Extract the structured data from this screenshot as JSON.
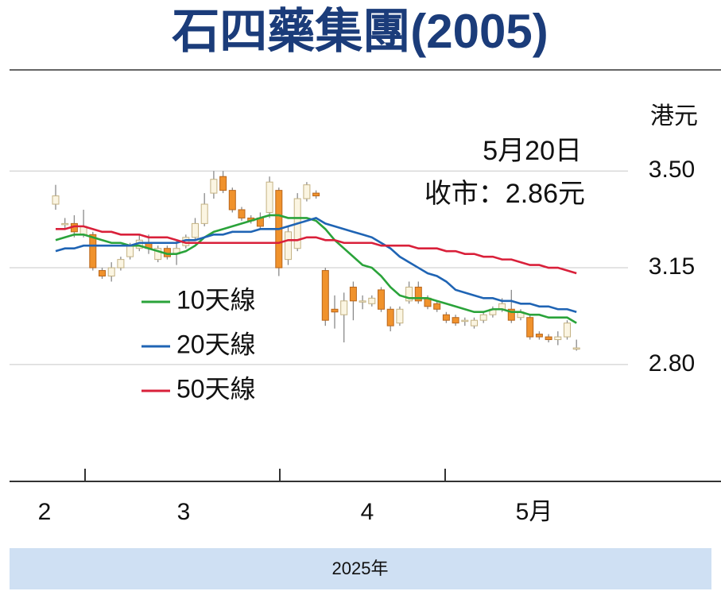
{
  "chart_data": {
    "type": "candlestick",
    "title": "石四藥集團(2005)",
    "y_unit": "港元",
    "annotations": [
      "5月20日",
      "收市：2.86元"
    ],
    "month_labels": [
      "2",
      "3",
      "4",
      "5月"
    ],
    "x_label": "2025年",
    "ylim": [
      2.38,
      3.86
    ],
    "yticks": [
      {
        "value": 3.5,
        "label": "3.50"
      },
      3.15,
      {
        "value": 2.8,
        "label": "2.80"
      }
    ],
    "grid": true,
    "up_color": "#fbf5e2",
    "down_color": "#f0922c",
    "open": [
      3.38,
      3.31,
      3.31,
      3.27,
      3.27,
      3.14,
      3.12,
      3.15,
      3.19,
      3.22,
      3.24,
      3.18,
      3.22,
      3.2,
      3.23,
      3.26,
      3.31,
      3.42,
      3.48,
      3.43,
      3.36,
      3.33,
      3.33,
      3.35,
      3.43,
      3.18,
      3.22,
      3.4,
      3.42,
      3.14,
      3.0,
      2.98,
      3.08,
      3.03,
      3.02,
      3.07,
      3.0,
      2.95,
      3.03,
      3.08,
      3.04,
      3.02,
      2.98,
      2.97,
      2.96,
      2.94,
      2.96,
      2.98,
      3.0,
      3.0,
      2.97,
      2.97,
      2.91,
      2.9,
      2.89,
      2.9,
      2.86
    ],
    "high": [
      3.45,
      3.33,
      3.34,
      3.36,
      3.28,
      3.15,
      3.17,
      3.19,
      3.24,
      3.27,
      3.27,
      3.23,
      3.23,
      3.25,
      3.27,
      3.33,
      3.42,
      3.5,
      3.5,
      3.44,
      3.37,
      3.34,
      3.35,
      3.48,
      3.44,
      3.3,
      3.42,
      3.46,
      3.43,
      3.15,
      3.05,
      3.06,
      3.1,
      3.05,
      3.05,
      3.08,
      3.01,
      3.01,
      3.1,
      3.1,
      3.05,
      3.03,
      2.99,
      2.98,
      2.97,
      2.97,
      2.99,
      3.01,
      3.04,
      3.07,
      3.0,
      2.98,
      2.92,
      2.91,
      2.92,
      2.96,
      2.89
    ],
    "low": [
      3.36,
      3.29,
      3.26,
      3.26,
      3.14,
      3.11,
      3.1,
      3.14,
      3.18,
      3.21,
      3.2,
      3.17,
      3.18,
      3.16,
      3.22,
      3.25,
      3.3,
      3.4,
      3.42,
      3.35,
      3.32,
      3.31,
      3.29,
      3.33,
      3.12,
      3.16,
      3.21,
      3.39,
      3.4,
      2.94,
      2.93,
      2.88,
      2.96,
      3.0,
      3.01,
      2.99,
      2.92,
      2.94,
      3.02,
      3.02,
      3.0,
      2.99,
      2.95,
      2.94,
      2.94,
      2.93,
      2.95,
      2.97,
      2.99,
      2.95,
      2.96,
      2.89,
      2.89,
      2.88,
      2.87,
      2.89,
      2.85
    ],
    "close": [
      3.41,
      3.31,
      3.28,
      3.3,
      3.15,
      3.12,
      3.15,
      3.18,
      3.23,
      3.25,
      3.22,
      3.22,
      3.19,
      3.22,
      3.26,
      3.31,
      3.38,
      3.47,
      3.43,
      3.36,
      3.33,
      3.32,
      3.3,
      3.46,
      3.15,
      3.28,
      3.4,
      3.45,
      3.41,
      2.96,
      2.99,
      3.03,
      3.03,
      3.03,
      3.04,
      3.0,
      2.94,
      3.0,
      3.08,
      3.03,
      3.01,
      3.0,
      2.96,
      2.95,
      2.96,
      2.96,
      2.98,
      3.0,
      3.02,
      2.96,
      2.99,
      2.9,
      2.9,
      2.89,
      2.9,
      2.95,
      2.86
    ],
    "series": [
      {
        "name": "10天線",
        "color": "#2aa33a",
        "values": [
          3.25,
          3.26,
          3.27,
          3.27,
          3.26,
          3.25,
          3.24,
          3.24,
          3.23,
          3.23,
          3.22,
          3.21,
          3.2,
          3.2,
          3.21,
          3.23,
          3.26,
          3.28,
          3.29,
          3.3,
          3.31,
          3.32,
          3.33,
          3.34,
          3.34,
          3.33,
          3.33,
          3.33,
          3.32,
          3.29,
          3.25,
          3.22,
          3.19,
          3.16,
          3.15,
          3.12,
          3.08,
          3.05,
          3.04,
          3.04,
          3.04,
          3.03,
          3.02,
          3.01,
          3.0,
          2.99,
          2.99,
          3.0,
          3.0,
          2.99,
          2.99,
          2.98,
          2.98,
          2.97,
          2.97,
          2.97,
          2.95
        ]
      },
      {
        "name": "20天線",
        "color": "#1f64b4",
        "values": [
          3.21,
          3.22,
          3.22,
          3.23,
          3.23,
          3.23,
          3.23,
          3.23,
          3.23,
          3.24,
          3.24,
          3.24,
          3.24,
          3.24,
          3.25,
          3.25,
          3.26,
          3.27,
          3.27,
          3.28,
          3.28,
          3.28,
          3.29,
          3.29,
          3.29,
          3.3,
          3.31,
          3.32,
          3.33,
          3.31,
          3.3,
          3.29,
          3.28,
          3.27,
          3.26,
          3.24,
          3.22,
          3.19,
          3.17,
          3.15,
          3.13,
          3.12,
          3.1,
          3.07,
          3.06,
          3.05,
          3.04,
          3.04,
          3.03,
          3.03,
          3.02,
          3.02,
          3.01,
          3.01,
          3.0,
          3.0,
          2.99
        ]
      },
      {
        "name": "50天線",
        "color": "#d9203a",
        "values": [
          3.29,
          3.29,
          3.3,
          3.3,
          3.29,
          3.28,
          3.28,
          3.27,
          3.27,
          3.27,
          3.26,
          3.26,
          3.26,
          3.25,
          3.24,
          3.24,
          3.24,
          3.24,
          3.24,
          3.24,
          3.24,
          3.24,
          3.24,
          3.24,
          3.24,
          3.25,
          3.25,
          3.26,
          3.26,
          3.25,
          3.25,
          3.24,
          3.24,
          3.24,
          3.24,
          3.23,
          3.23,
          3.23,
          3.23,
          3.22,
          3.22,
          3.22,
          3.21,
          3.21,
          3.2,
          3.2,
          3.19,
          3.19,
          3.18,
          3.18,
          3.17,
          3.16,
          3.16,
          3.15,
          3.15,
          3.14,
          3.13
        ]
      }
    ]
  }
}
